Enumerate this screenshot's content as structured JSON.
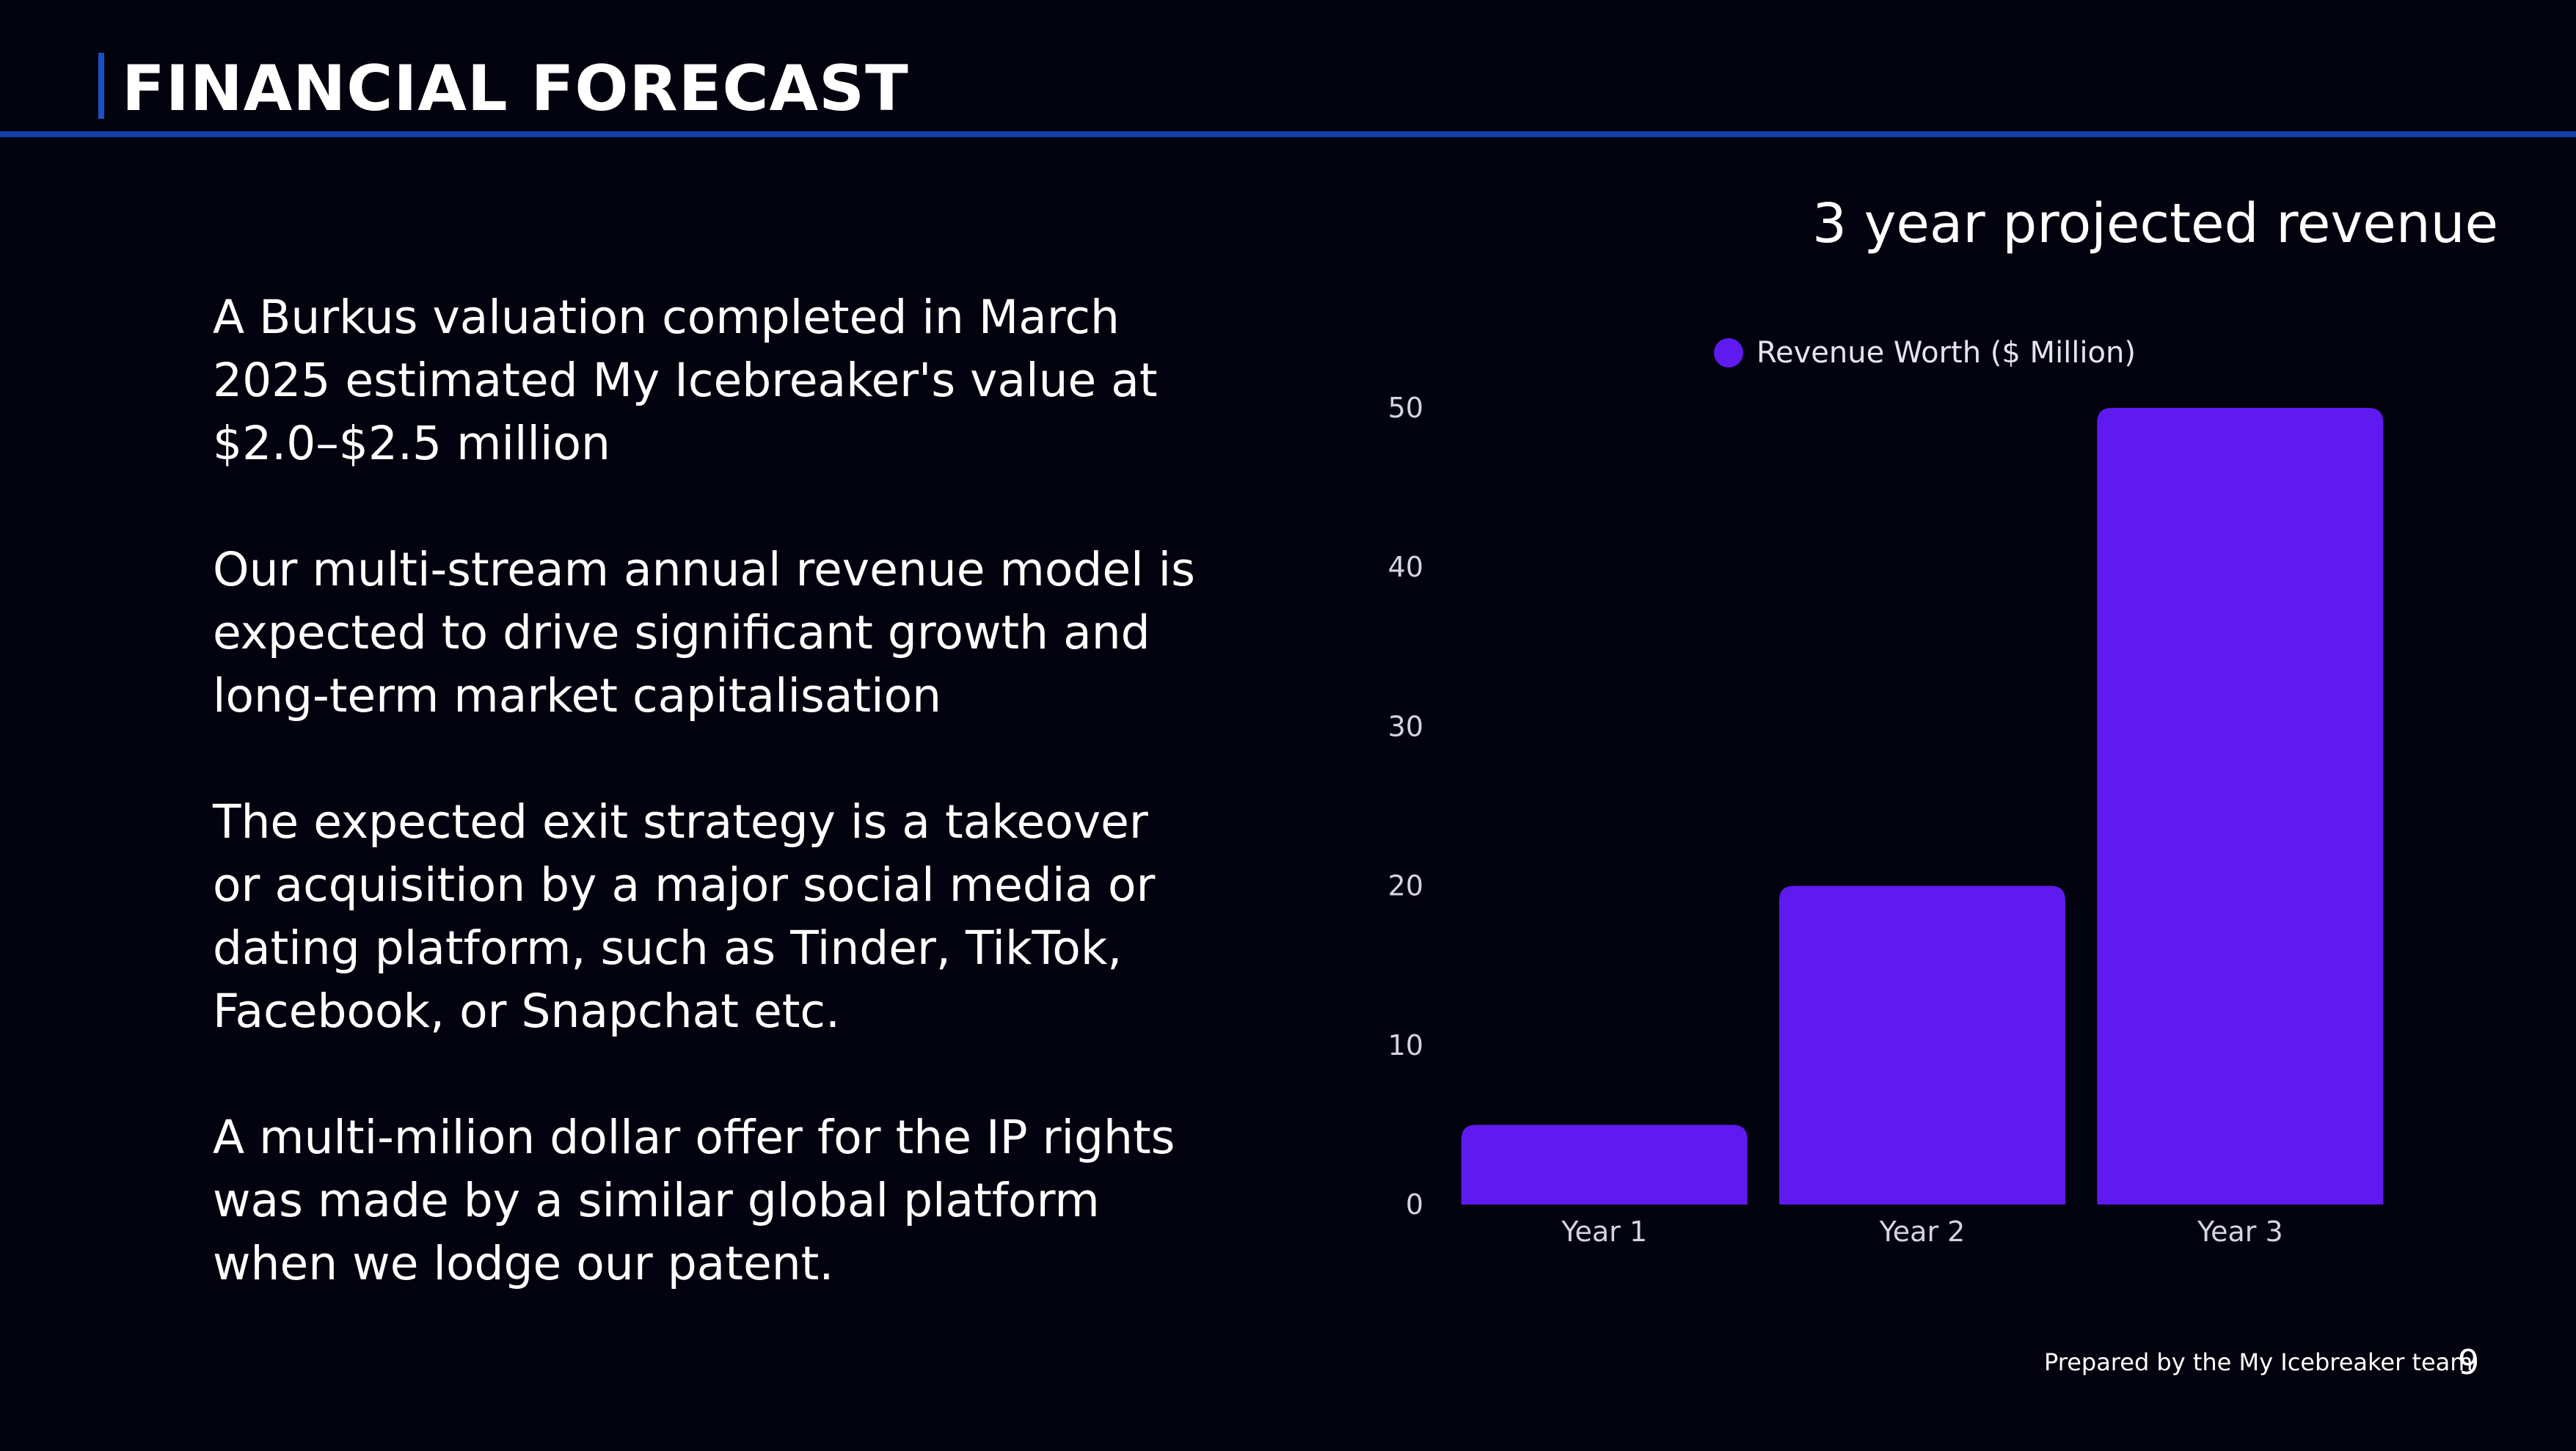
{
  "slide": {
    "title": "FINANCIAL FORECAST",
    "paragraphs": [
      "A Burkus valuation completed in March 2025 estimated My Icebreaker's value at $2.0–$2.5 million",
      "Our multi-stream annual revenue model is expected to drive significant growth and long-term market capitalisation",
      "The expected exit strategy is a takeover or acquisition by a major social media or dating platform, such as Tinder, TikTok, Facebook, or Snapchat etc.",
      "A multi-milion dollar offer for the IP rights was made by a similar global platform when we lodge our patent."
    ],
    "footer": "Prepared by the My Icebreaker  team",
    "page_number": "9",
    "accent_color": "#1d4fc4"
  },
  "chart_data": {
    "type": "bar",
    "title": "3 year projected revenue",
    "categories": [
      "Year 1",
      "Year 2",
      "Year 3"
    ],
    "series": [
      {
        "name": "Revenue Worth ($ Million)",
        "values": [
          5,
          20,
          50
        ],
        "color": "#5f1aef"
      }
    ],
    "ylim": [
      0,
      50
    ],
    "yticks": [
      0,
      10,
      20,
      30,
      40,
      50
    ],
    "xlabel": "",
    "ylabel": "",
    "grid": false,
    "legend_position": "top"
  }
}
